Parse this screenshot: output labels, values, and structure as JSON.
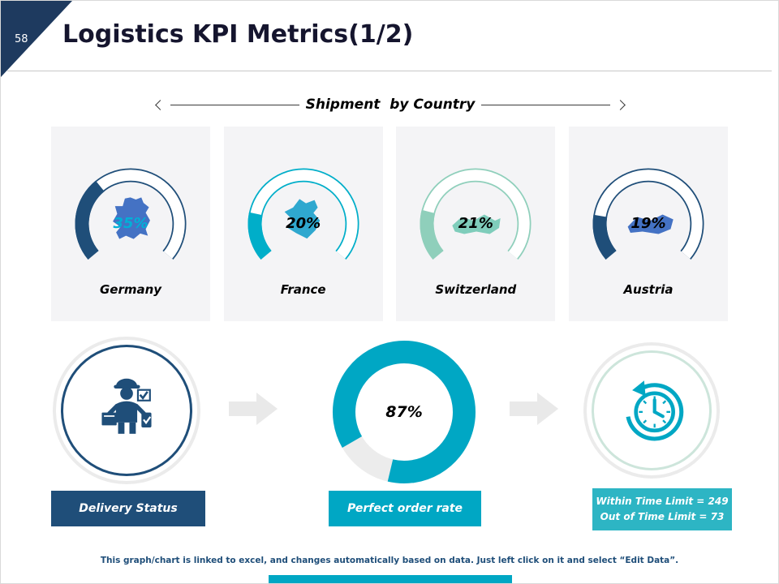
{
  "slide": {
    "number": "58",
    "title": "Logistics KPI Metrics(1/2)",
    "footer": "This graph/chart is linked to excel, and changes automatically based on data. Just left click on it and select “Edit Data”."
  },
  "chart_data": [
    {
      "type": "gauge",
      "title": "Shipment  by Country",
      "categories": [
        "Germany",
        "France",
        "Switzerland",
        "Austria"
      ],
      "values": [
        35,
        20,
        21,
        19
      ],
      "value_labels": [
        "35%",
        "20%",
        "21%",
        "19%"
      ],
      "unit": "%",
      "range": [
        0,
        100
      ],
      "sweep_degrees": 260,
      "gauge_colors": [
        "#1f4e79",
        "#00aec9",
        "#8fcfbb",
        "#1f4e79"
      ],
      "map_colors": [
        "#4472c4",
        "#2fa8cf",
        "#7fcdbb",
        "#4472c4"
      ],
      "value_label_colors": [
        "#00b0d8",
        "#000000",
        "#000000",
        "#000000"
      ]
    },
    {
      "type": "donut",
      "label": "Perfect order rate",
      "value": 87,
      "value_label": "87%",
      "color": "#00a7c4",
      "track_color": "#ececec"
    }
  ],
  "kpi": {
    "delivery": {
      "label": "Delivery Status",
      "box_color": "#1f4e79",
      "icon": "delivery-person-icon",
      "icon_color": "#1f4e79"
    },
    "time": {
      "line1": "Within Time Limit = 249",
      "line2": "Out of Time Limit = 73",
      "box_color": "#2db5c4",
      "icon": "clock-rewind-icon",
      "icon_color": "#00a7c4"
    }
  },
  "footer_bar_color": "#00a7c4"
}
